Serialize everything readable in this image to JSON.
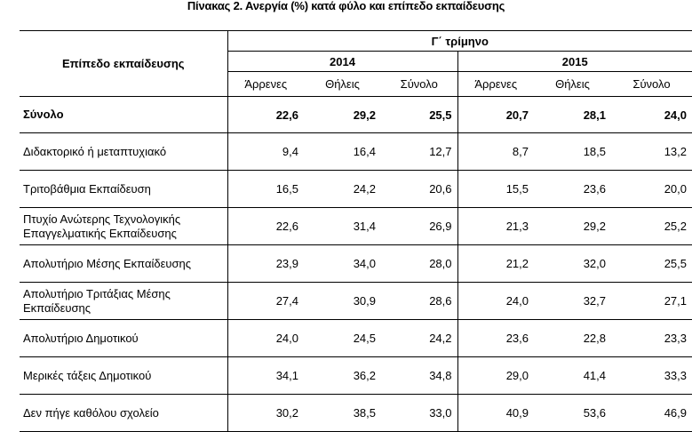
{
  "title": "Πίνακας 2. Ανεργία (%) κατά φύλο και επίπεδο εκπαίδευσης",
  "header": {
    "level_col": "Επίπεδο εκπαίδευσης",
    "quarter": "Γ΄ τρίμηνο",
    "years": [
      "2014",
      "2015"
    ],
    "subcols": [
      "Άρρενες",
      "Θήλεις",
      "Σύνολο",
      "Άρρενες",
      "Θήλεις",
      "Σύνολο"
    ]
  },
  "rows": [
    {
      "label": "Σύνολο",
      "values": [
        "22,6",
        "29,2",
        "25,5",
        "20,7",
        "28,1",
        "24,0"
      ]
    },
    {
      "label": "Διδακτορικό ή μεταπτυχιακό",
      "values": [
        "9,4",
        "16,4",
        "12,7",
        "8,7",
        "18,5",
        "13,2"
      ]
    },
    {
      "label": "Τριτοβάθμια Εκπαίδευση",
      "values": [
        "16,5",
        "24,2",
        "20,6",
        "15,5",
        "23,6",
        "20,0"
      ]
    },
    {
      "label": "Πτυχίο Ανώτερης Τεχνολογικής Επαγγελματικής Εκπαίδευσης",
      "values": [
        "22,6",
        "31,4",
        "26,9",
        "21,3",
        "29,2",
        "25,2"
      ]
    },
    {
      "label": "Απολυτήριο Μέσης Εκπαίδευσης",
      "values": [
        "23,9",
        "34,0",
        "28,0",
        "21,2",
        "32,0",
        "25,5"
      ]
    },
    {
      "label": "Απολυτήριο Τριτάξιας Μέσης Εκπαίδευσης",
      "values": [
        "27,4",
        "30,9",
        "28,6",
        "24,0",
        "32,7",
        "27,1"
      ]
    },
    {
      "label": "Απολυτήριο Δημοτικού",
      "values": [
        "24,0",
        "24,5",
        "24,2",
        "23,6",
        "22,8",
        "23,3"
      ]
    },
    {
      "label": "Μερικές τάξεις Δημοτικού",
      "values": [
        "34,1",
        "36,2",
        "34,8",
        "29,0",
        "41,4",
        "33,3"
      ]
    },
    {
      "label": "Δεν πήγε καθόλου σχολείο",
      "values": [
        "30,2",
        "38,5",
        "33,0",
        "40,9",
        "53,6",
        "46,9"
      ]
    }
  ]
}
